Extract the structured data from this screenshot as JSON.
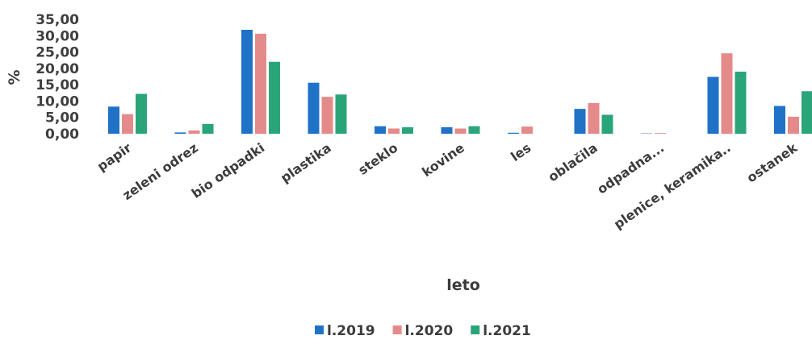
{
  "chart_data": {
    "type": "bar",
    "title": "",
    "xlabel": "leto",
    "ylabel": "%",
    "ylim": [
      0,
      35
    ],
    "yticks": [
      "35,00",
      "30,00",
      "25,00",
      "20,00",
      "15,00",
      "10,00",
      "5,00",
      "0,00"
    ],
    "categories": [
      "papir",
      "zeleni odrez",
      "bio odpadki",
      "plastika",
      "steklo",
      "kovine",
      "les",
      "oblačila",
      "odpadna...",
      "plenice, keramika..",
      "ostanek"
    ],
    "series": [
      {
        "name": "l.2019",
        "color": "#1f72c6",
        "values": [
          8.3,
          0.4,
          31.8,
          15.6,
          2.3,
          2.0,
          0.3,
          7.6,
          0.1,
          17.4,
          8.5
        ]
      },
      {
        "name": "l.2020",
        "color": "#e58a8a",
        "values": [
          6.0,
          1.0,
          30.6,
          11.3,
          1.6,
          1.6,
          2.2,
          9.4,
          0.2,
          24.6,
          5.2
        ]
      },
      {
        "name": "l.2021",
        "color": "#2aa57a",
        "values": [
          12.2,
          3.0,
          22.0,
          12.0,
          2.0,
          2.3,
          0.0,
          5.8,
          0.0,
          19.0,
          13.0
        ]
      }
    ],
    "grid": false,
    "legend_position": "bottom"
  }
}
